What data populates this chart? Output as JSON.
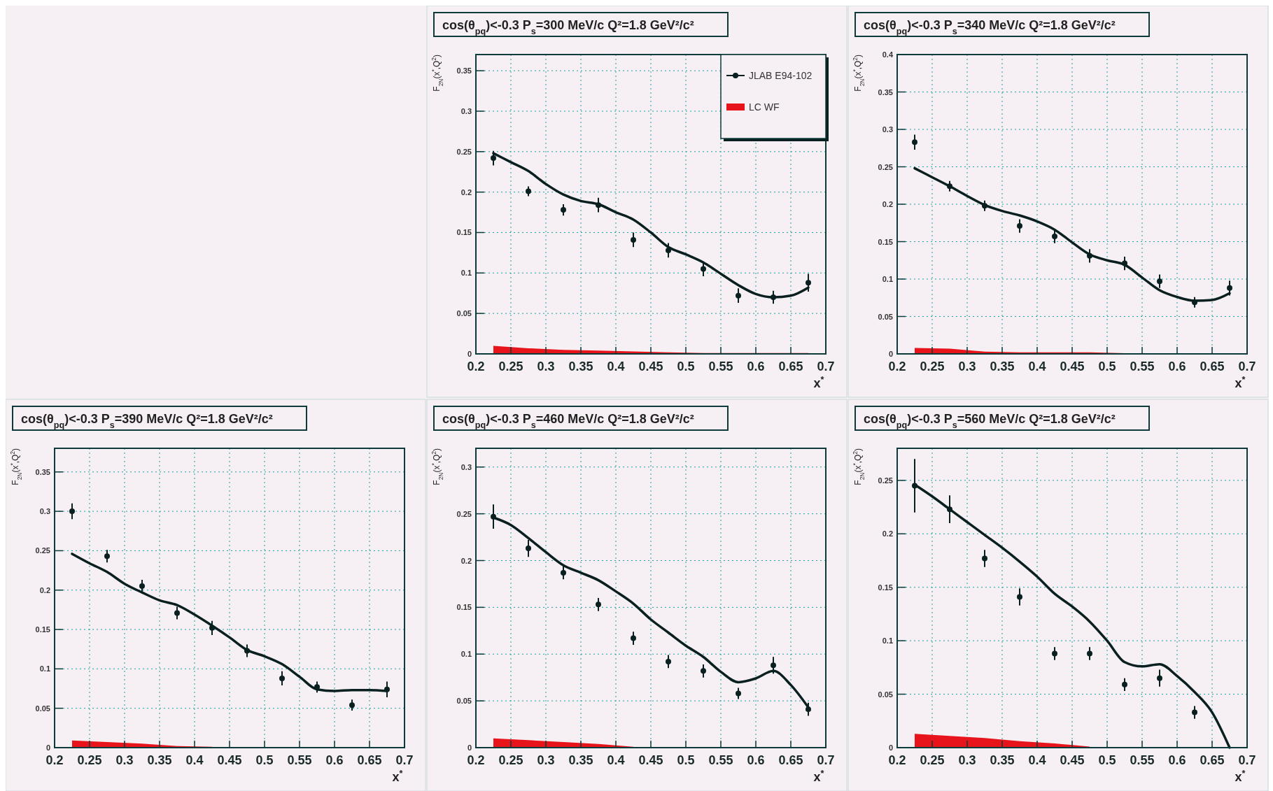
{
  "chart_data": [
    {
      "type": "scatter",
      "title": "cos(θ$_{pq}$)<-0.3 P$_{s}$=300 MeV/c Q²=1.8 GeV²/c²",
      "xlabel": "x$^{*}$",
      "ylabel": "F$_{2N}$(x$^{*}$,Q$^{2}$)",
      "xlim": [
        0.2,
        0.7
      ],
      "xticks": [
        0.2,
        0.25,
        0.3,
        0.35,
        0.4,
        0.45,
        0.5,
        0.55,
        0.6,
        0.65,
        0.7
      ],
      "ylim": [
        0,
        0.37
      ],
      "yticks": [
        0,
        0.05,
        0.1,
        0.15,
        0.2,
        0.25,
        0.3,
        0.35
      ],
      "grid": true,
      "legend": "top right",
      "series": [
        {
          "type": "area",
          "name": "LC WF",
          "color": "#e8141c",
          "x": [
            0.225,
            0.275,
            0.325,
            0.375,
            0.425,
            0.475,
            0.525,
            0.575,
            0.625,
            0.675
          ],
          "values": [
            0.01,
            0.007,
            0.005,
            0.004,
            0.003,
            0.002,
            0.001,
            0.001,
            0.001,
            0.001
          ]
        },
        {
          "type": "line",
          "color": "#0a1f1f",
          "x": [
            0.225,
            0.25,
            0.275,
            0.3,
            0.325,
            0.35,
            0.375,
            0.4,
            0.425,
            0.45,
            0.475,
            0.5,
            0.525,
            0.55,
            0.575,
            0.6,
            0.625,
            0.65,
            0.675
          ],
          "values": [
            0.248,
            0.237,
            0.226,
            0.21,
            0.197,
            0.189,
            0.185,
            0.175,
            0.166,
            0.15,
            0.132,
            0.123,
            0.113,
            0.099,
            0.085,
            0.074,
            0.07,
            0.072,
            0.082
          ]
        },
        {
          "name": "JLAB E94-102",
          "marker": "circle",
          "color": "#0a1f1f",
          "x": [
            0.225,
            0.275,
            0.325,
            0.375,
            0.425,
            0.475,
            0.525,
            0.575,
            0.625,
            0.675
          ],
          "values": [
            0.242,
            0.201,
            0.178,
            0.184,
            0.141,
            0.128,
            0.105,
            0.072,
            0.07,
            0.088
          ],
          "errors": [
            0.009,
            0.006,
            0.007,
            0.009,
            0.009,
            0.009,
            0.009,
            0.009,
            0.008,
            0.011
          ]
        }
      ]
    },
    {
      "type": "scatter",
      "title": "cos(θ$_{pq}$)<-0.3 P$_{s}$=340 MeV/c Q²=1.8 GeV²/c²",
      "xlabel": "x$^{*}$",
      "ylabel": "F$_{2N}$(x$^{*}$,Q$^{2}$)",
      "xlim": [
        0.2,
        0.7
      ],
      "xticks": [
        0.2,
        0.25,
        0.3,
        0.35,
        0.4,
        0.45,
        0.5,
        0.55,
        0.6,
        0.65,
        0.7
      ],
      "ylim": [
        0,
        0.4
      ],
      "yticks": [
        0,
        0.05,
        0.1,
        0.15,
        0.2,
        0.25,
        0.3,
        0.35,
        0.4
      ],
      "grid": true,
      "series": [
        {
          "type": "area",
          "color": "#e8141c",
          "x": [
            0.225,
            0.275,
            0.325,
            0.375,
            0.425,
            0.475,
            0.525
          ],
          "values": [
            0.008,
            0.007,
            0.003,
            0.002,
            0.002,
            0.002,
            0.001
          ]
        },
        {
          "type": "line",
          "color": "#0a1f1f",
          "x": [
            0.225,
            0.25,
            0.275,
            0.3,
            0.325,
            0.35,
            0.375,
            0.4,
            0.425,
            0.45,
            0.475,
            0.5,
            0.525,
            0.55,
            0.575,
            0.6,
            0.625,
            0.65,
            0.675
          ],
          "values": [
            0.248,
            0.236,
            0.224,
            0.211,
            0.199,
            0.191,
            0.185,
            0.177,
            0.166,
            0.149,
            0.133,
            0.125,
            0.119,
            0.102,
            0.085,
            0.076,
            0.071,
            0.072,
            0.081
          ]
        },
        {
          "marker": "circle",
          "color": "#0a1f1f",
          "x": [
            0.225,
            0.275,
            0.325,
            0.375,
            0.425,
            0.475,
            0.525,
            0.575,
            0.625,
            0.675
          ],
          "values": [
            0.283,
            0.224,
            0.198,
            0.171,
            0.157,
            0.131,
            0.121,
            0.097,
            0.069,
            0.088
          ],
          "errors": [
            0.01,
            0.007,
            0.007,
            0.009,
            0.009,
            0.009,
            0.009,
            0.009,
            0.007,
            0.01
          ]
        }
      ]
    },
    {
      "type": "scatter",
      "title": "cos(θ$_{pq}$)<-0.3 P$_{s}$=390 MeV/c Q²=1.8 GeV²/c²",
      "xlabel": "x$^{*}$",
      "ylabel": "F$_{2N}$(x$^{*}$,Q$^{2}$)",
      "xlim": [
        0.2,
        0.7
      ],
      "xticks": [
        0.2,
        0.25,
        0.3,
        0.35,
        0.4,
        0.45,
        0.5,
        0.55,
        0.6,
        0.65,
        0.7
      ],
      "ylim": [
        0,
        0.38
      ],
      "yticks": [
        0,
        0.05,
        0.1,
        0.15,
        0.2,
        0.25,
        0.3,
        0.35
      ],
      "grid": true,
      "series": [
        {
          "type": "area",
          "color": "#e8141c",
          "x": [
            0.225,
            0.275,
            0.325,
            0.375,
            0.425
          ],
          "values": [
            0.009,
            0.007,
            0.005,
            0.002,
            0.001
          ]
        },
        {
          "type": "line",
          "color": "#0a1f1f",
          "x": [
            0.225,
            0.25,
            0.275,
            0.3,
            0.325,
            0.35,
            0.375,
            0.4,
            0.425,
            0.45,
            0.475,
            0.5,
            0.525,
            0.55,
            0.575,
            0.6,
            0.625,
            0.65,
            0.675
          ],
          "values": [
            0.246,
            0.234,
            0.223,
            0.208,
            0.197,
            0.187,
            0.181,
            0.169,
            0.155,
            0.14,
            0.124,
            0.116,
            0.106,
            0.09,
            0.074,
            0.072,
            0.073,
            0.073,
            0.072
          ]
        },
        {
          "marker": "circle",
          "color": "#0a1f1f",
          "x": [
            0.225,
            0.275,
            0.325,
            0.375,
            0.425,
            0.475,
            0.525,
            0.575,
            0.625,
            0.675
          ],
          "values": [
            0.3,
            0.243,
            0.205,
            0.171,
            0.152,
            0.123,
            0.088,
            0.077,
            0.054,
            0.074
          ],
          "errors": [
            0.01,
            0.008,
            0.008,
            0.008,
            0.009,
            0.008,
            0.009,
            0.007,
            0.007,
            0.01
          ]
        }
      ]
    },
    {
      "type": "scatter",
      "title": "cos(θ$_{pq}$)<-0.3 P$_{s}$=460 MeV/c Q²=1.8 GeV²/c²",
      "xlabel": "x$^{*}$",
      "ylabel": "F$_{2N}$(x$^{*}$,Q$^{2}$)",
      "xlim": [
        0.2,
        0.7
      ],
      "xticks": [
        0.2,
        0.25,
        0.3,
        0.35,
        0.4,
        0.45,
        0.5,
        0.55,
        0.6,
        0.65,
        0.7
      ],
      "ylim": [
        0,
        0.32
      ],
      "yticks": [
        0,
        0.05,
        0.1,
        0.15,
        0.2,
        0.25,
        0.3
      ],
      "grid": true,
      "series": [
        {
          "type": "area",
          "color": "#e8141c",
          "x": [
            0.225,
            0.275,
            0.325,
            0.375,
            0.425
          ],
          "values": [
            0.01,
            0.008,
            0.006,
            0.004,
            0.001
          ]
        },
        {
          "type": "line",
          "color": "#0a1f1f",
          "x": [
            0.225,
            0.25,
            0.275,
            0.3,
            0.325,
            0.35,
            0.375,
            0.4,
            0.425,
            0.45,
            0.475,
            0.5,
            0.525,
            0.55,
            0.575,
            0.6,
            0.625,
            0.65,
            0.675
          ],
          "values": [
            0.246,
            0.238,
            0.224,
            0.209,
            0.195,
            0.187,
            0.179,
            0.167,
            0.154,
            0.137,
            0.123,
            0.109,
            0.097,
            0.081,
            0.07,
            0.074,
            0.082,
            0.067,
            0.043
          ]
        },
        {
          "marker": "circle",
          "color": "#0a1f1f",
          "x": [
            0.225,
            0.275,
            0.325,
            0.375,
            0.425,
            0.475,
            0.525,
            0.575,
            0.625,
            0.675
          ],
          "values": [
            0.247,
            0.213,
            0.187,
            0.153,
            0.117,
            0.092,
            0.082,
            0.058,
            0.088,
            0.041
          ],
          "errors": [
            0.013,
            0.009,
            0.007,
            0.007,
            0.007,
            0.007,
            0.007,
            0.006,
            0.009,
            0.007
          ]
        }
      ]
    },
    {
      "type": "scatter",
      "title": "cos(θ$_{pq}$)<-0.3 P$_{s}$=560 MeV/c Q²=1.8 GeV²/c²",
      "xlabel": "x$^{*}$",
      "ylabel": "F$_{2N}$(x$^{*}$,Q$^{2}$)",
      "xlim": [
        0.2,
        0.7
      ],
      "xticks": [
        0.2,
        0.25,
        0.3,
        0.35,
        0.4,
        0.45,
        0.5,
        0.55,
        0.6,
        0.65,
        0.7
      ],
      "ylim": [
        0,
        0.28
      ],
      "yticks": [
        0,
        0.05,
        0.1,
        0.15,
        0.2,
        0.25
      ],
      "grid": true,
      "series": [
        {
          "type": "area",
          "color": "#e8141c",
          "x": [
            0.225,
            0.275,
            0.325,
            0.375,
            0.425,
            0.475
          ],
          "values": [
            0.013,
            0.011,
            0.009,
            0.006,
            0.004,
            0.001
          ]
        },
        {
          "type": "line",
          "color": "#0a1f1f",
          "x": [
            0.225,
            0.25,
            0.275,
            0.3,
            0.325,
            0.35,
            0.375,
            0.4,
            0.425,
            0.45,
            0.475,
            0.5,
            0.525,
            0.55,
            0.575,
            0.6,
            0.625,
            0.65,
            0.675
          ],
          "values": [
            0.246,
            0.235,
            0.223,
            0.211,
            0.199,
            0.187,
            0.174,
            0.16,
            0.144,
            0.132,
            0.118,
            0.1,
            0.08,
            0.076,
            0.078,
            0.067,
            0.052,
            0.033,
            0
          ]
        },
        {
          "marker": "circle",
          "color": "#0a1f1f",
          "x": [
            0.225,
            0.275,
            0.325,
            0.375,
            0.425,
            0.475,
            0.525,
            0.575,
            0.625
          ],
          "values": [
            0.245,
            0.223,
            0.177,
            0.141,
            0.088,
            0.088,
            0.059,
            0.065,
            0.033
          ],
          "errors": [
            0.025,
            0.013,
            0.008,
            0.008,
            0.006,
            0.006,
            0.006,
            0.008,
            0.006
          ]
        }
      ]
    }
  ]
}
